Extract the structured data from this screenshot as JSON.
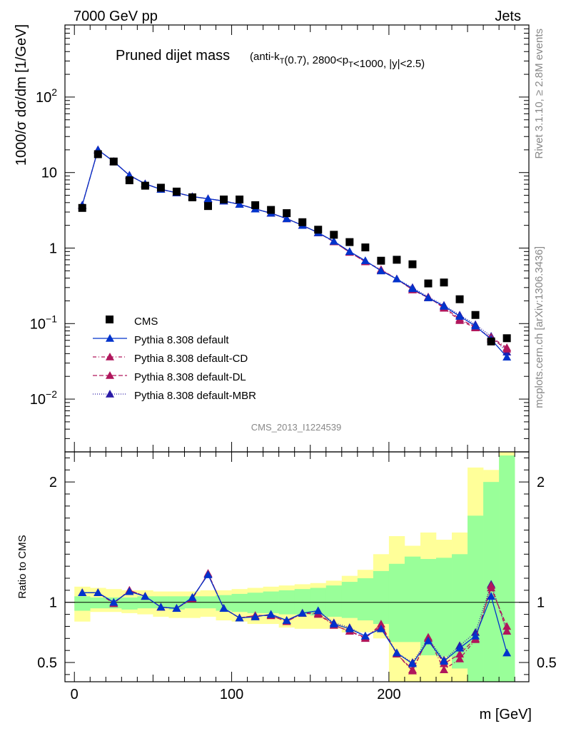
{
  "header": {
    "energy": "7000 GeV pp",
    "process": "Jets",
    "rivet_version": "Rivet 3.1.10, ≥ 2.8M events",
    "source": "mcplots.cern.ch [arXiv:1306.3436]",
    "analysis_id": "CMS_2013_I1224539"
  },
  "chart_data": [
    {
      "type": "scatter",
      "panel": "main",
      "title": "Pruned dijet mass",
      "subtitle": "(anti-k_T(0.7), 2800<p_T<1000, |y|<2.5)",
      "ylabel": "1000/σ dσ/dm [1/GeV]",
      "yscale": "log",
      "ylim": [
        0.002,
        900
      ],
      "xlim": [
        -6,
        289
      ],
      "legend_position": "lower-left",
      "x": [
        5,
        15,
        25,
        35,
        45,
        55,
        65,
        75,
        85,
        95,
        105,
        115,
        125,
        135,
        145,
        155,
        165,
        175,
        185,
        195,
        205,
        215,
        225,
        235,
        245,
        255,
        265,
        275
      ],
      "series": [
        {
          "name": "CMS",
          "color": "#000000",
          "marker": "square",
          "values": [
            3.4,
            17.5,
            14.0,
            7.9,
            6.7,
            6.3,
            5.6,
            4.7,
            3.6,
            4.4,
            4.4,
            3.7,
            3.2,
            2.9,
            2.2,
            1.75,
            1.5,
            1.2,
            1.02,
            0.68,
            0.7,
            0.61,
            0.34,
            0.35,
            0.21,
            0.13,
            0.058,
            0.064
          ]
        },
        {
          "name": "Pythia 8.308 default",
          "color": "#0033cc",
          "dash": "",
          "marker": "triangle",
          "values": [
            3.7,
            20.0,
            14.0,
            9.2,
            7.1,
            6.0,
            5.4,
            4.8,
            4.5,
            4.2,
            3.8,
            3.3,
            2.9,
            2.45,
            2.0,
            1.6,
            1.23,
            0.9,
            0.68,
            0.5,
            0.39,
            0.29,
            0.22,
            0.17,
            0.125,
            0.093,
            0.062,
            0.036
          ]
        },
        {
          "name": "Pythia 8.308 default-CD",
          "color": "#b0165c",
          "dash": "5,3,1,3",
          "marker": "triangle",
          "values": [
            3.7,
            20.0,
            14.0,
            9.2,
            7.1,
            6.0,
            5.4,
            4.8,
            4.5,
            4.2,
            3.8,
            3.3,
            2.9,
            2.45,
            2.0,
            1.6,
            1.21,
            0.88,
            0.66,
            0.52,
            0.39,
            0.28,
            0.225,
            0.16,
            0.11,
            0.088,
            0.066,
            0.048
          ]
        },
        {
          "name": "Pythia 8.308 default-DL",
          "color": "#b0165c",
          "dash": "6,3",
          "marker": "triangle",
          "values": [
            3.7,
            20.0,
            14.0,
            9.2,
            7.1,
            6.0,
            5.4,
            4.8,
            4.5,
            4.2,
            3.8,
            3.3,
            2.9,
            2.45,
            2.0,
            1.6,
            1.21,
            0.88,
            0.66,
            0.51,
            0.39,
            0.28,
            0.22,
            0.165,
            0.115,
            0.09,
            0.064,
            0.046
          ]
        },
        {
          "name": "Pythia 8.308 default-MBR",
          "color": "#2a1aa6",
          "dash": "1,2",
          "marker": "triangle",
          "values": [
            3.7,
            20.0,
            14.0,
            9.2,
            7.1,
            6.0,
            5.4,
            4.8,
            4.5,
            4.2,
            3.8,
            3.3,
            2.9,
            2.45,
            2.0,
            1.6,
            1.23,
            0.9,
            0.68,
            0.5,
            0.39,
            0.3,
            0.225,
            0.175,
            0.13,
            0.097,
            0.068,
            0.042
          ]
        }
      ]
    },
    {
      "type": "line",
      "panel": "ratio",
      "ylabel": "Ratio to CMS",
      "xlabel": "m [GeV]",
      "ylim": [
        0.34,
        2.25
      ],
      "xlim": [
        -6,
        289
      ],
      "x_ticks": [
        0,
        100,
        200
      ],
      "y_ticks": [
        0.5,
        1,
        2
      ],
      "x": [
        5,
        15,
        25,
        35,
        45,
        55,
        65,
        75,
        85,
        95,
        105,
        115,
        125,
        135,
        145,
        155,
        165,
        175,
        185,
        195,
        205,
        215,
        225,
        235,
        245,
        255,
        265,
        275
      ],
      "band_edges": [
        0,
        10,
        20,
        30,
        40,
        50,
        60,
        70,
        80,
        90,
        100,
        110,
        120,
        130,
        140,
        150,
        160,
        170,
        180,
        190,
        200,
        210,
        220,
        230,
        240,
        250,
        260,
        270,
        280
      ],
      "total_uncertainty_band": {
        "color": "#ffff99",
        "low": [
          0.84,
          0.92,
          0.92,
          0.91,
          0.9,
          0.88,
          0.87,
          0.87,
          0.88,
          0.85,
          0.84,
          0.82,
          0.82,
          0.79,
          0.78,
          0.78,
          0.78,
          0.75,
          0.75,
          0.7,
          0.2,
          0.2,
          0.2,
          0.2,
          0.2,
          0.2,
          0.2,
          0.2
        ],
        "high": [
          1.13,
          1.12,
          1.11,
          1.1,
          1.1,
          1.09,
          1.09,
          1.09,
          1.1,
          1.1,
          1.11,
          1.12,
          1.13,
          1.14,
          1.15,
          1.16,
          1.18,
          1.22,
          1.27,
          1.4,
          1.55,
          1.47,
          1.58,
          1.52,
          1.58,
          2.12,
          2.1,
          2.3
        ]
      },
      "stat_uncertainty_band": {
        "color": "#99ff99",
        "low": [
          0.93,
          0.95,
          0.95,
          0.94,
          0.95,
          0.95,
          0.94,
          0.95,
          0.95,
          0.93,
          0.92,
          0.91,
          0.91,
          0.9,
          0.9,
          0.89,
          0.88,
          0.87,
          0.85,
          0.82,
          0.67,
          0.67,
          0.56,
          0.55,
          0.45,
          0.3,
          0.3,
          0.3
        ],
        "high": [
          1.05,
          1.04,
          1.04,
          1.04,
          1.05,
          1.05,
          1.05,
          1.05,
          1.05,
          1.06,
          1.07,
          1.08,
          1.09,
          1.1,
          1.11,
          1.12,
          1.14,
          1.17,
          1.2,
          1.26,
          1.32,
          1.38,
          1.36,
          1.37,
          1.4,
          1.72,
          2.0,
          2.22
        ]
      },
      "series": [
        {
          "name": "Pythia 8.308 default",
          "color": "#0033cc",
          "dash": "",
          "values": [
            1.08,
            1.08,
            1.0,
            1.09,
            1.05,
            0.96,
            0.95,
            1.04,
            1.23,
            0.95,
            0.87,
            0.88,
            0.9,
            0.85,
            0.91,
            0.93,
            0.82,
            0.78,
            0.72,
            0.78,
            0.58,
            0.49,
            0.68,
            0.51,
            0.62,
            0.72,
            1.05,
            0.58
          ]
        },
        {
          "name": "Pythia 8.308 default-CD",
          "color": "#b0165c",
          "dash": "5,3,1,3",
          "values": [
            1.08,
            1.08,
            0.99,
            1.1,
            1.05,
            0.96,
            0.95,
            1.03,
            1.24,
            0.95,
            0.87,
            0.89,
            0.89,
            0.84,
            0.91,
            0.9,
            0.81,
            0.76,
            0.7,
            0.82,
            0.57,
            0.43,
            0.71,
            0.44,
            0.53,
            0.69,
            1.14,
            0.76
          ]
        },
        {
          "name": "Pythia 8.308 default-DL",
          "color": "#b0165c",
          "dash": "6,3",
          "values": [
            1.08,
            1.08,
            0.99,
            1.1,
            1.05,
            0.96,
            0.95,
            1.03,
            1.24,
            0.95,
            0.87,
            0.89,
            0.89,
            0.84,
            0.91,
            0.91,
            0.81,
            0.76,
            0.71,
            0.8,
            0.57,
            0.44,
            0.7,
            0.49,
            0.57,
            0.7,
            1.12,
            0.8
          ]
        },
        {
          "name": "Pythia 8.308 default-MBR",
          "color": "#2a1aa6",
          "dash": "1,2",
          "values": [
            1.08,
            1.08,
            1.0,
            1.09,
            1.05,
            0.96,
            0.95,
            1.04,
            1.23,
            0.95,
            0.87,
            0.88,
            0.9,
            0.85,
            0.91,
            0.93,
            0.83,
            0.79,
            0.72,
            0.79,
            0.58,
            0.5,
            0.7,
            0.52,
            0.64,
            0.75,
            1.15,
            0.76
          ]
        }
      ]
    }
  ]
}
